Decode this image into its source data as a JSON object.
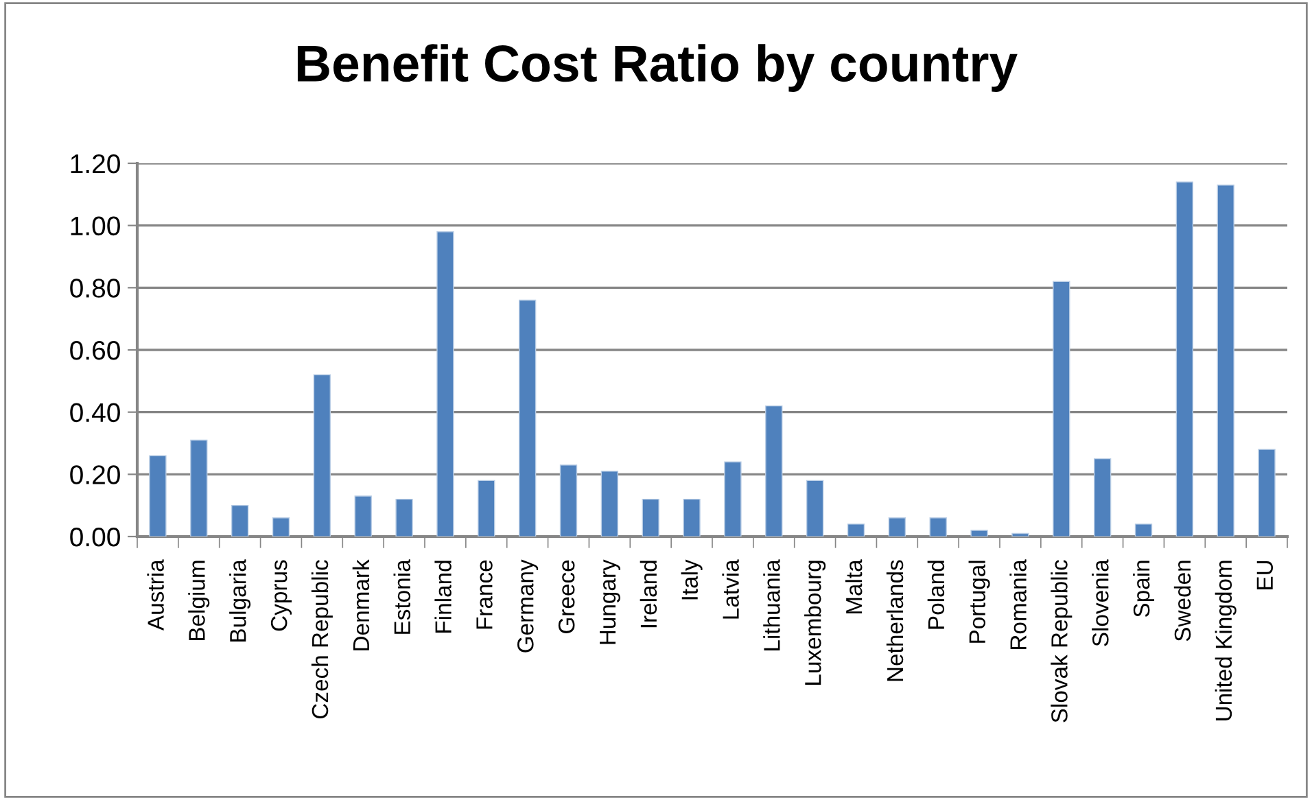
{
  "chart_data": {
    "type": "bar",
    "title": "Benefit Cost Ratio by country",
    "categories": [
      "Austria",
      "Belgium",
      "Bulgaria",
      "Cyprus",
      "Czech Republic",
      "Denmark",
      "Estonia",
      "Finland",
      "France",
      "Germany",
      "Greece",
      "Hungary",
      "Ireland",
      "Italy",
      "Latvia",
      "Lithuania",
      "Luxembourg",
      "Malta",
      "Netherlands",
      "Poland",
      "Portugal",
      "Romania",
      "Slovak Republic",
      "Slovenia",
      "Spain",
      "Sweden",
      "United Kingdom",
      "EU"
    ],
    "values": [
      0.26,
      0.31,
      0.1,
      0.06,
      0.52,
      0.13,
      0.12,
      0.98,
      0.18,
      0.76,
      0.23,
      0.21,
      0.12,
      0.12,
      0.24,
      0.42,
      0.18,
      0.04,
      0.06,
      0.06,
      0.02,
      0.01,
      0.82,
      0.25,
      0.04,
      1.14,
      1.13,
      0.28
    ],
    "color": "#4f81bd",
    "ylim": [
      0,
      1.2
    ],
    "yticks": [
      {
        "value": 0,
        "label": "0.00"
      },
      {
        "value": 0.2,
        "label": "0.20"
      },
      {
        "value": 0.4,
        "label": "0.40"
      },
      {
        "value": 0.6,
        "label": "0.60"
      },
      {
        "value": 0.8,
        "label": "0.80"
      },
      {
        "value": 1.0,
        "label": "1.00"
      },
      {
        "value": 1.2,
        "label": "1.20"
      }
    ],
    "grid": "y",
    "legend": false
  }
}
